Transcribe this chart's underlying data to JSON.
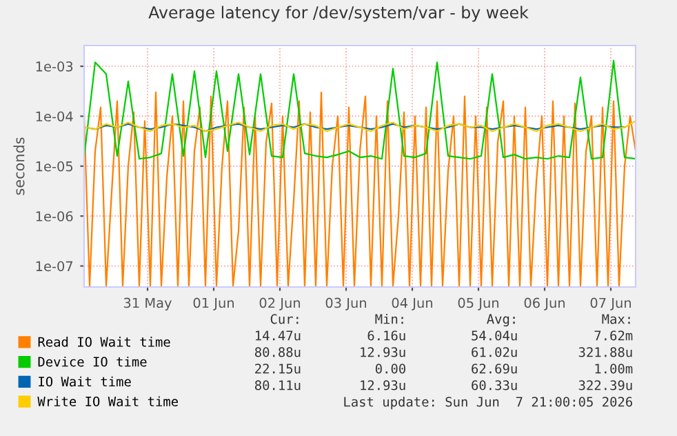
{
  "chart_data": {
    "type": "line",
    "title": "Average latency for /dev/system/var - by week",
    "ylabel": "seconds",
    "log": "y",
    "grid": true,
    "legend": "bottom",
    "xlim": [
      "2026-05-30T13:00",
      "2026-06-07T21:00"
    ],
    "xticks": [
      {
        "value": "2026-05-31T12:00",
        "label": "31 May"
      },
      {
        "value": "2026-06-01T12:00",
        "label": "01 Jun"
      },
      {
        "value": "2026-06-02T12:00",
        "label": "02 Jun"
      },
      {
        "value": "2026-06-03T12:00",
        "label": "03 Jun"
      },
      {
        "value": "2026-06-04T12:00",
        "label": "04 Jun"
      },
      {
        "value": "2026-06-05T12:00",
        "label": "05 Jun"
      },
      {
        "value": "2026-06-06T12:00",
        "label": "06 Jun"
      },
      {
        "value": "2026-06-07T12:00",
        "label": "07 Jun"
      }
    ],
    "ylim": [
      3.8e-08,
      0.0026
    ],
    "yticks": [
      {
        "value": 1e-07,
        "label": "1e-07"
      },
      {
        "value": 1e-06,
        "label": "1e-06"
      },
      {
        "value": 1e-05,
        "label": "1e-05"
      },
      {
        "value": 0.0001,
        "label": "1e-04"
      },
      {
        "value": 0.001,
        "label": "1e-03"
      }
    ],
    "annotations": [
      "Cur:",
      "Min:",
      "Avg:",
      "Max:",
      "14.47u",
      "6.16u",
      "54.04u",
      "7.62m",
      "80.88u",
      "12.93u",
      "61.02u",
      "321.88u",
      "22.15u",
      "0.00",
      "62.69u",
      "1.00m",
      "80.11u",
      "12.93u",
      "60.33u",
      "322.39u",
      "Last update: Sun Jun  7 21:00:05 2026"
    ],
    "series": [
      {
        "name": "Read IO Wait time",
        "color": "#ff8000",
        "x": [
          "2026-05-30T13:00",
          "2026-05-30T15:00",
          "2026-05-30T17:00",
          "2026-05-30T19:00",
          "2026-05-30T21:00",
          "2026-05-30T23:00",
          "2026-05-31T01:00",
          "2026-05-31T03:00",
          "2026-05-31T05:00",
          "2026-05-31T07:00",
          "2026-05-31T09:00",
          "2026-05-31T11:00",
          "2026-05-31T13:00",
          "2026-05-31T15:00",
          "2026-05-31T17:00",
          "2026-05-31T19:00",
          "2026-05-31T21:00",
          "2026-05-31T23:00",
          "2026-06-01T01:00",
          "2026-06-01T03:00",
          "2026-06-01T05:00",
          "2026-06-01T07:00",
          "2026-06-01T09:00",
          "2026-06-01T11:00",
          "2026-06-01T13:00",
          "2026-06-01T15:00",
          "2026-06-01T17:00",
          "2026-06-01T19:00",
          "2026-06-01T21:00",
          "2026-06-01T23:00",
          "2026-06-02T01:00",
          "2026-06-02T03:00",
          "2026-06-02T05:00",
          "2026-06-02T07:00",
          "2026-06-02T09:00",
          "2026-06-02T11:00",
          "2026-06-02T13:00",
          "2026-06-02T15:00",
          "2026-06-02T17:00",
          "2026-06-02T19:00",
          "2026-06-02T21:00",
          "2026-06-02T23:00",
          "2026-06-03T01:00",
          "2026-06-03T03:00",
          "2026-06-03T05:00",
          "2026-06-03T07:00",
          "2026-06-03T09:00",
          "2026-06-03T11:00",
          "2026-06-03T13:00",
          "2026-06-03T15:00",
          "2026-06-03T17:00",
          "2026-06-03T19:00",
          "2026-06-03T21:00",
          "2026-06-03T23:00",
          "2026-06-04T01:00",
          "2026-06-04T03:00",
          "2026-06-04T05:00",
          "2026-06-04T07:00",
          "2026-06-04T09:00",
          "2026-06-04T11:00",
          "2026-06-04T13:00",
          "2026-06-04T15:00",
          "2026-06-04T17:00",
          "2026-06-04T19:00",
          "2026-06-04T21:00",
          "2026-06-04T23:00",
          "2026-06-05T01:00",
          "2026-06-05T03:00",
          "2026-06-05T05:00",
          "2026-06-05T07:00",
          "2026-06-05T09:00",
          "2026-06-05T11:00",
          "2026-06-05T13:00",
          "2026-06-05T15:00",
          "2026-06-05T17:00",
          "2026-06-05T19:00",
          "2026-06-05T21:00",
          "2026-06-05T23:00",
          "2026-06-06T01:00",
          "2026-06-06T03:00",
          "2026-06-06T05:00",
          "2026-06-06T07:00",
          "2026-06-06T09:00",
          "2026-06-06T11:00",
          "2026-06-06T13:00",
          "2026-06-06T15:00",
          "2026-06-06T17:00",
          "2026-06-06T19:00",
          "2026-06-06T21:00",
          "2026-06-06T23:00",
          "2026-06-07T01:00",
          "2026-06-07T03:00",
          "2026-06-07T05:00",
          "2026-06-07T07:00",
          "2026-06-07T09:00",
          "2026-06-07T11:00",
          "2026-06-07T13:00",
          "2026-06-07T15:00",
          "2026-06-07T17:00",
          "2026-06-07T19:00",
          "2026-06-07T21:00"
        ],
        "values": [
          0.0001,
          4e-08,
          2e-05,
          0.00015,
          4e-08,
          3e-06,
          0.0002,
          4e-08,
          1e-05,
          0.00012,
          4e-08,
          8e-05,
          4e-08,
          0.0003,
          4e-08,
          6e-06,
          0.0001,
          4e-08,
          0.0002,
          4e-08,
          2e-05,
          0.00015,
          4e-08,
          0.00025,
          4e-08,
          1e-05,
          0.0002,
          4e-08,
          5e-07,
          0.00015,
          4e-08,
          0.0001,
          4e-08,
          3e-05,
          0.00018,
          4e-08,
          0.0001,
          4e-08,
          2e-06,
          0.0002,
          4e-08,
          0.00012,
          4e-08,
          0.0003,
          4e-08,
          1e-05,
          0.0001,
          4e-08,
          0.00015,
          4e-08,
          2e-05,
          0.00025,
          4e-08,
          0.0001,
          4e-08,
          0.0002,
          4e-08,
          1e-06,
          0.00012,
          4e-08,
          0.0001,
          4e-08,
          0.00015,
          4e-08,
          0.0002,
          4e-08,
          8e-06,
          0.0001,
          4e-08,
          0.00025,
          4e-08,
          0.0001,
          4e-08,
          0.00015,
          4e-08,
          3e-05,
          0.0002,
          4e-08,
          0.0001,
          4e-08,
          0.00015,
          4e-08,
          5e-06,
          0.0001,
          4e-08,
          0.0002,
          4e-08,
          0.0001,
          4e-08,
          0.00018,
          4e-08,
          2e-05,
          0.0001,
          4e-08,
          0.00015,
          4e-08,
          0.0002,
          4e-08,
          1e-05,
          0.0001,
          2e-05
        ]
      },
      {
        "name": "Device IO time",
        "color": "#00cc00",
        "x": [
          "2026-05-30T13:00",
          "2026-05-30T17:00",
          "2026-05-30T21:00",
          "2026-05-31T01:00",
          "2026-05-31T05:00",
          "2026-05-31T09:00",
          "2026-05-31T13:00",
          "2026-05-31T17:00",
          "2026-05-31T21:00",
          "2026-06-01T01:00",
          "2026-06-01T05:00",
          "2026-06-01T09:00",
          "2026-06-01T13:00",
          "2026-06-01T17:00",
          "2026-06-01T21:00",
          "2026-06-02T01:00",
          "2026-06-02T05:00",
          "2026-06-02T09:00",
          "2026-06-02T13:00",
          "2026-06-02T17:00",
          "2026-06-02T21:00",
          "2026-06-03T01:00",
          "2026-06-03T05:00",
          "2026-06-03T09:00",
          "2026-06-03T13:00",
          "2026-06-03T17:00",
          "2026-06-03T21:00",
          "2026-06-04T01:00",
          "2026-06-04T05:00",
          "2026-06-04T09:00",
          "2026-06-04T13:00",
          "2026-06-04T17:00",
          "2026-06-04T21:00",
          "2026-06-05T01:00",
          "2026-06-05T05:00",
          "2026-06-05T09:00",
          "2026-06-05T13:00",
          "2026-06-05T17:00",
          "2026-06-05T21:00",
          "2026-06-06T01:00",
          "2026-06-06T05:00",
          "2026-06-06T09:00",
          "2026-06-06T13:00",
          "2026-06-06T17:00",
          "2026-06-06T21:00",
          "2026-06-07T01:00",
          "2026-06-07T05:00",
          "2026-06-07T09:00",
          "2026-06-07T13:00",
          "2026-06-07T17:00",
          "2026-06-07T21:00"
        ],
        "values": [
          1.5e-05,
          0.0012,
          0.0007,
          1.6e-05,
          0.0005,
          1.4e-05,
          1.5e-05,
          1.8e-05,
          0.0007,
          1.6e-05,
          0.0008,
          1.5e-05,
          0.0008,
          2e-05,
          0.0007,
          1.7e-05,
          0.0007,
          1.6e-05,
          1.5e-05,
          0.0007,
          1.8e-05,
          1.6e-05,
          1.5e-05,
          1.7e-05,
          2e-05,
          1.5e-05,
          1.6e-05,
          1.4e-05,
          0.0009,
          1.6e-05,
          1.5e-05,
          1.8e-05,
          0.0012,
          1.6e-05,
          1.5e-05,
          1.4e-05,
          1.6e-05,
          0.0007,
          1.5e-05,
          1.7e-05,
          1.4e-05,
          1.5e-05,
          1.4e-05,
          1.6e-05,
          1.5e-05,
          0.0006,
          1.4e-05,
          1.5e-05,
          0.0013,
          1.5e-05,
          1.4e-05
        ]
      },
      {
        "name": "IO Wait time",
        "color": "#0066b3",
        "x": [
          "2026-05-30T13:00",
          "2026-05-30T17:00",
          "2026-05-30T21:00",
          "2026-05-31T01:00",
          "2026-05-31T05:00",
          "2026-05-31T09:00",
          "2026-05-31T13:00",
          "2026-05-31T17:00",
          "2026-05-31T21:00",
          "2026-06-01T01:00",
          "2026-06-01T05:00",
          "2026-06-01T09:00",
          "2026-06-01T13:00",
          "2026-06-01T17:00",
          "2026-06-01T21:00",
          "2026-06-02T01:00",
          "2026-06-02T05:00",
          "2026-06-02T09:00",
          "2026-06-02T13:00",
          "2026-06-02T17:00",
          "2026-06-02T21:00",
          "2026-06-03T01:00",
          "2026-06-03T05:00",
          "2026-06-03T09:00",
          "2026-06-03T13:00",
          "2026-06-03T17:00",
          "2026-06-03T21:00",
          "2026-06-04T01:00",
          "2026-06-04T05:00",
          "2026-06-04T09:00",
          "2026-06-04T13:00",
          "2026-06-04T17:00",
          "2026-06-04T21:00",
          "2026-06-05T01:00",
          "2026-06-05T05:00",
          "2026-06-05T09:00",
          "2026-06-05T13:00",
          "2026-06-05T17:00",
          "2026-06-05T21:00",
          "2026-06-06T01:00",
          "2026-06-06T05:00",
          "2026-06-06T09:00",
          "2026-06-06T13:00",
          "2026-06-06T17:00",
          "2026-06-06T21:00",
          "2026-06-07T01:00",
          "2026-06-07T05:00",
          "2026-06-07T09:00",
          "2026-06-07T13:00",
          "2026-06-07T17:00"
        ],
        "values": [
          6e-05,
          5.5e-05,
          6.5e-05,
          6e-05,
          7e-05,
          6e-05,
          5.5e-05,
          6e-05,
          7e-05,
          6.5e-05,
          6e-05,
          5e-05,
          6e-05,
          6.5e-05,
          7e-05,
          6e-05,
          5.5e-05,
          6e-05,
          6.5e-05,
          6e-05,
          7e-05,
          6e-05,
          5.5e-05,
          6e-05,
          6.5e-05,
          6e-05,
          5.5e-05,
          6e-05,
          7e-05,
          6e-05,
          6.5e-05,
          6e-05,
          5.5e-05,
          6e-05,
          7e-05,
          6e-05,
          6e-05,
          5.5e-05,
          6e-05,
          6.5e-05,
          6e-05,
          5.5e-05,
          6e-05,
          6.5e-05,
          6e-05,
          5.5e-05,
          6e-05,
          6.5e-05,
          6e-05,
          6e-05
        ]
      },
      {
        "name": "Write IO Wait time",
        "color": "#ffcc00",
        "x": [
          "2026-05-30T13:00",
          "2026-05-30T17:00",
          "2026-05-30T21:00",
          "2026-05-31T01:00",
          "2026-05-31T05:00",
          "2026-05-31T09:00",
          "2026-05-31T13:00",
          "2026-05-31T17:00",
          "2026-05-31T21:00",
          "2026-06-01T01:00",
          "2026-06-01T05:00",
          "2026-06-01T09:00",
          "2026-06-01T13:00",
          "2026-06-01T17:00",
          "2026-06-01T21:00",
          "2026-06-02T01:00",
          "2026-06-02T05:00",
          "2026-06-02T09:00",
          "2026-06-02T13:00",
          "2026-06-02T17:00",
          "2026-06-02T21:00",
          "2026-06-03T01:00",
          "2026-06-03T05:00",
          "2026-06-03T09:00",
          "2026-06-03T13:00",
          "2026-06-03T17:00",
          "2026-06-03T21:00",
          "2026-06-04T01:00",
          "2026-06-04T05:00",
          "2026-06-04T09:00",
          "2026-06-04T13:00",
          "2026-06-04T17:00",
          "2026-06-04T21:00",
          "2026-06-05T01:00",
          "2026-06-05T05:00",
          "2026-06-05T09:00",
          "2026-06-05T13:00",
          "2026-06-05T17:00",
          "2026-06-05T21:00",
          "2026-06-06T01:00",
          "2026-06-06T05:00",
          "2026-06-06T09:00",
          "2026-06-06T13:00",
          "2026-06-06T17:00",
          "2026-06-06T21:00",
          "2026-06-07T01:00",
          "2026-06-07T05:00",
          "2026-06-07T09:00",
          "2026-06-07T13:00",
          "2026-06-07T17:00",
          "2026-06-07T21:00"
        ],
        "values": [
          6e-05,
          5.5e-05,
          7e-05,
          6e-05,
          7.5e-05,
          6e-05,
          5e-05,
          6.5e-05,
          7e-05,
          6e-05,
          6.5e-05,
          5e-05,
          5.5e-05,
          6.5e-05,
          7.5e-05,
          6e-05,
          5e-05,
          6.5e-05,
          7e-05,
          5.5e-05,
          7e-05,
          6.5e-05,
          5e-05,
          6e-05,
          7e-05,
          6e-05,
          5e-05,
          6.5e-05,
          7.5e-05,
          5.5e-05,
          6.5e-05,
          6e-05,
          5e-05,
          6.5e-05,
          7e-05,
          6e-05,
          6.5e-05,
          5e-05,
          6e-05,
          7e-05,
          6e-05,
          5e-05,
          6.5e-05,
          7e-05,
          6e-05,
          5e-05,
          6e-05,
          7e-05,
          5.5e-05,
          6e-05,
          8e-05
        ]
      }
    ]
  }
}
